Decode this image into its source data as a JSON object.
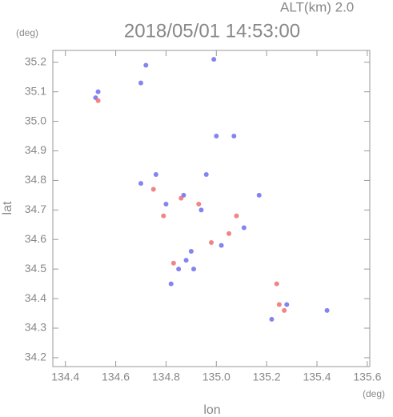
{
  "chart_data": {
    "type": "scatter",
    "title": "2018/05/01 14:53:00",
    "annotation": "ALT(km) 2.0",
    "x_label": "lon",
    "y_label": "lat",
    "x_unit": "(deg)",
    "y_unit": "(deg)",
    "xlim": [
      134.35,
      135.61
    ],
    "ylim": [
      34.17,
      35.24
    ],
    "xticks": [
      134.4,
      134.6,
      134.8,
      {
        "value": 135,
        "label": "135.0"
      },
      135.2,
      135.4,
      135.6
    ],
    "yticks": [
      34.2,
      34.3,
      34.4,
      34.5,
      34.6,
      34.7,
      34.8,
      34.9,
      {
        "value": 35,
        "label": "35.0"
      },
      35.1,
      35.2
    ],
    "series": [
      {
        "color": "#6f6fee",
        "x": [
          134.53,
          134.52,
          134.7,
          134.72,
          134.99,
          135.0,
          135.07,
          134.96,
          134.7,
          134.76,
          134.87,
          135.17,
          135.02,
          134.88,
          134.91,
          134.82,
          135.44,
          135.22,
          135.28,
          134.94,
          134.8,
          135.11,
          134.9,
          134.85
        ],
        "y": [
          35.1,
          35.08,
          35.13,
          35.19,
          35.21,
          34.95,
          34.95,
          34.82,
          34.79,
          34.82,
          34.75,
          34.75,
          34.58,
          34.53,
          34.5,
          34.45,
          34.36,
          34.33,
          34.38,
          34.7,
          34.72,
          34.64,
          34.56,
          34.5
        ]
      },
      {
        "color": "#ee6f6f",
        "x": [
          134.53,
          135.08,
          135.24,
          135.27,
          134.83,
          134.86,
          134.75,
          135.05,
          134.98,
          135.25,
          134.93,
          134.79
        ],
        "y": [
          35.07,
          34.68,
          34.45,
          34.36,
          34.52,
          34.74,
          34.77,
          34.62,
          34.59,
          34.38,
          34.72,
          34.68
        ]
      }
    ]
  }
}
